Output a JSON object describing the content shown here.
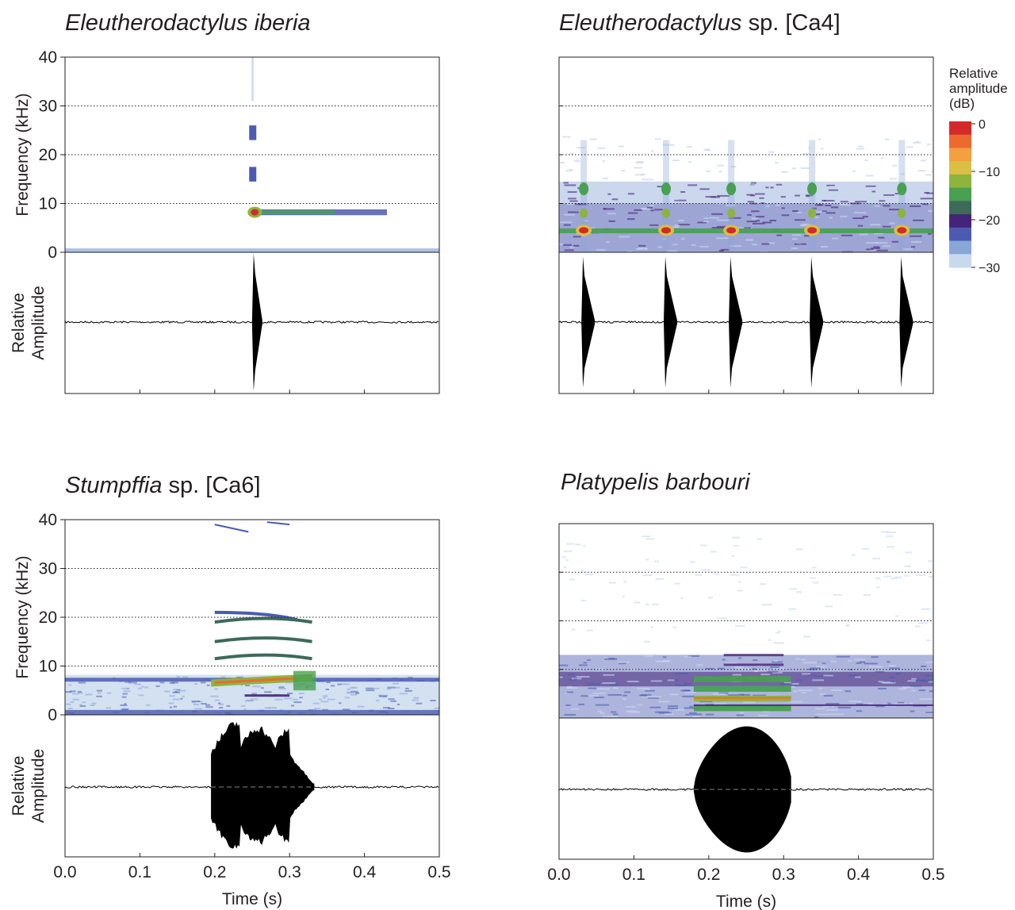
{
  "chart_data": [
    {
      "type": "spectrogram",
      "title_italic": "Eleutherodactylus iberia",
      "title_rest": "",
      "ylabel_top": "Frequency (kHz)",
      "ylabel_bottom_1": "Relative",
      "ylabel_bottom_2": "Amplitude",
      "xlabel": "",
      "ylim_khz": [
        0,
        40
      ],
      "yticks": [
        "0",
        "10",
        "20",
        "30",
        "40"
      ],
      "xlim_s": [
        0,
        0.5
      ],
      "xticks": [],
      "calls": [
        {
          "start": 0.25,
          "duration": 0.01,
          "dominant_khz": 8,
          "harmonics_khz": [
            8,
            16,
            24
          ],
          "tail_end": 0.43
        }
      ]
    },
    {
      "type": "spectrogram",
      "title_italic": "Eleutherodactylus",
      "title_rest": " sp. [Ca4]",
      "ylabel_top": "",
      "ylabel_bottom_1": "",
      "ylabel_bottom_2": "",
      "xlabel": "",
      "ylim_khz": [
        0,
        40
      ],
      "yticks": [],
      "xlim_s": [
        0,
        0.5
      ],
      "xticks": [],
      "calls": [
        {
          "start": 0.033,
          "dominant_khz": 4.5
        },
        {
          "start": 0.143,
          "dominant_khz": 4.5
        },
        {
          "start": 0.23,
          "dominant_khz": 4.5
        },
        {
          "start": 0.338,
          "dominant_khz": 4.5
        },
        {
          "start": 0.458,
          "dominant_khz": 4.5
        }
      ]
    },
    {
      "type": "spectrogram",
      "title_italic": "Stumpffia",
      "title_rest": " sp. [Ca6]",
      "ylabel_top": "Frequency (kHz)",
      "ylabel_bottom_1": "Relative",
      "ylabel_bottom_2": "Amplitude",
      "xlabel": "Time (s)",
      "ylim_khz": [
        0,
        40
      ],
      "yticks": [
        "0",
        "10",
        "20",
        "30",
        "40"
      ],
      "xlim_s": [
        0,
        0.5
      ],
      "xticks": [
        "0.0",
        "0.1",
        "0.2",
        "0.3",
        "0.4",
        "0.5"
      ],
      "calls": [
        {
          "start": 0.195,
          "end": 0.33,
          "dominant_khz": 7,
          "harmonics_khz": [
            7,
            11,
            15,
            19
          ]
        }
      ]
    },
    {
      "type": "spectrogram",
      "title_italic": "Platypelis barbouri",
      "title_rest": "",
      "ylabel_top": "",
      "ylabel_bottom_1": "",
      "ylabel_bottom_2": "",
      "xlabel": "Time (s)",
      "ylim_khz": [
        0,
        40
      ],
      "yticks": [],
      "xlim_s": [
        0,
        0.5
      ],
      "xticks": [
        "0.0",
        "0.1",
        "0.2",
        "0.3",
        "0.4",
        "0.5"
      ],
      "calls": [
        {
          "start": 0.18,
          "end": 0.31,
          "dominant_khz": 4,
          "harmonics_khz": [
            2,
            4,
            6,
            8
          ]
        }
      ]
    }
  ],
  "colorbar": {
    "title_lines": [
      "Relative",
      "amplitude",
      "(dB)"
    ],
    "ticks": [
      "0",
      "−10",
      "−20",
      "−30"
    ],
    "colors": [
      "#c8d9ee",
      "#8aa6d6",
      "#4c5bb1",
      "#46237a",
      "#3d6a5a",
      "#48a050",
      "#8db43c",
      "#d9c045",
      "#f5a040",
      "#ec6a30",
      "#d42a2a"
    ]
  }
}
